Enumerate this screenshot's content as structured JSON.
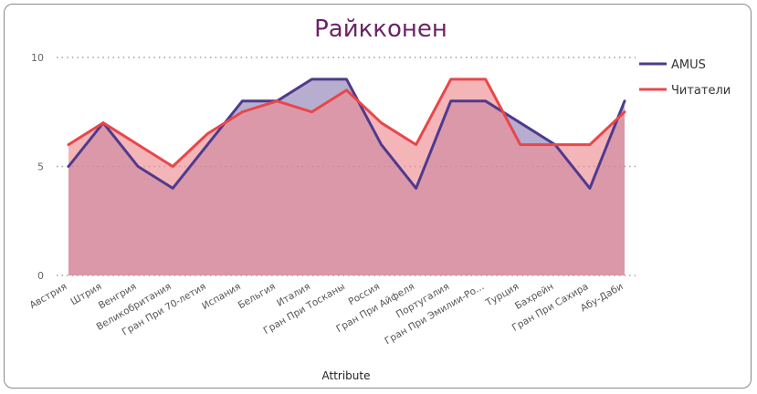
{
  "chart_data": {
    "type": "area",
    "title": "Райкконен",
    "xlabel": "Attribute",
    "ylabel": "",
    "ylim": [
      0,
      10
    ],
    "yticks": [
      0,
      5,
      10
    ],
    "grid": "dotted horizontal",
    "legend_position": "right",
    "categories": [
      "Австрия",
      "Штрия",
      "Венгрия",
      "Великобритания",
      "Гран При 70-летия",
      "Испания",
      "Бельгия",
      "Италия",
      "Гран При Тосканы",
      "Россия",
      "Гран При Айфеля",
      "Португалия",
      "Гран При Эмилии-Ро...",
      "Турция",
      "Бахрейн",
      "Гран При Сахира",
      "Абу-Даби"
    ],
    "series": [
      {
        "name": "AMUS",
        "color": "#4f3a8e",
        "fill": "#7b69a8",
        "values": [
          5,
          7,
          5,
          4,
          6,
          8,
          8,
          9,
          9,
          6,
          4,
          8,
          8,
          7,
          6,
          4,
          8
        ]
      },
      {
        "name": "Читатели",
        "color": "#e8474a",
        "fill": "#ee8e93",
        "values": [
          6,
          7,
          6,
          5,
          6.5,
          7.5,
          8,
          7.5,
          8.5,
          7,
          6,
          9,
          9,
          6,
          6,
          6,
          7.5
        ]
      }
    ]
  }
}
